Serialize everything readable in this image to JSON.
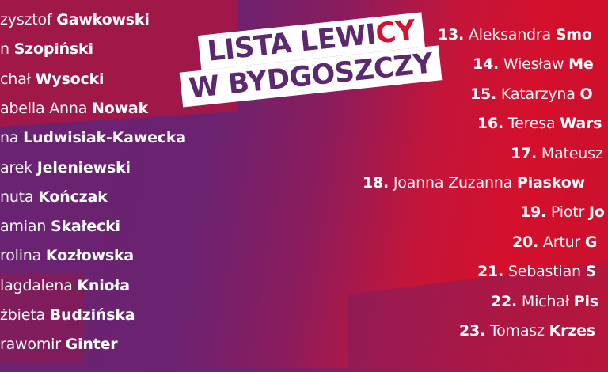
{
  "title": {
    "line1_a": "LISTA LEWI",
    "line1_b": "CY",
    "line2": "W BYDGOSZCZY"
  },
  "colors": {
    "title_purple": "#5c2870",
    "title_red": "#d4112e",
    "bg_red": "#d4102c",
    "bg_purple": "#6a2372"
  },
  "left_list": [
    {
      "first": "zysztof",
      "last": "Gawkowski"
    },
    {
      "first": "n",
      "last": "Szopiński"
    },
    {
      "first": "chał",
      "last": "Wysocki"
    },
    {
      "first": "abella Anna",
      "last": "Nowak"
    },
    {
      "first": "na",
      "last": "Ludwisiak-Kawecka"
    },
    {
      "first": "arek",
      "last": "Jeleniewski"
    },
    {
      "first": "nuta",
      "last": "Kończak"
    },
    {
      "first": "amian",
      "last": "Skałecki"
    },
    {
      "first": "rolina",
      "last": "Kozłowska"
    },
    {
      "first": "lagdalena",
      "last": "Knioła"
    },
    {
      "first": "żbieta",
      "last": "Budzińska"
    },
    {
      "first": "rawomir",
      "last": "Ginter"
    }
  ],
  "right_list": [
    {
      "num": "13.",
      "first": "Aleksandra",
      "last": "Smo"
    },
    {
      "num": "14.",
      "first": "Wiesław",
      "last": "Me"
    },
    {
      "num": "15.",
      "first": "Katarzyna",
      "last": "O"
    },
    {
      "num": "16.",
      "first": "Teresa",
      "last": "Wars"
    },
    {
      "num": "17.",
      "first": "Mateusz",
      "last": ""
    },
    {
      "num": "18.",
      "first": "Joanna Zuzanna",
      "last": "Piaskow"
    },
    {
      "num": "19.",
      "first": "Piotr",
      "last": "Jo"
    },
    {
      "num": "20.",
      "first": "Artur",
      "last": "G"
    },
    {
      "num": "21.",
      "first": "Sebastian",
      "last": "S"
    },
    {
      "num": "22.",
      "first": "Michał",
      "last": "Pis"
    },
    {
      "num": "23.",
      "first": "Tomasz",
      "last": "Krzes"
    }
  ]
}
